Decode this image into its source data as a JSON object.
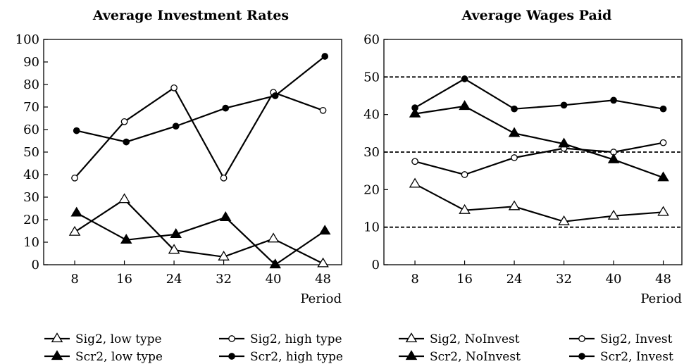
{
  "chart_data": [
    {
      "type": "line",
      "title": "Average Investment Rates",
      "xlabel": "Period",
      "ylabel": "",
      "x": [
        8,
        16,
        24,
        32,
        40,
        48
      ],
      "xticks": [
        "8",
        "16",
        "24",
        "32",
        "40",
        "48"
      ],
      "xlim": [
        3,
        51
      ],
      "ylim": [
        0,
        100
      ],
      "yticks": [
        "0",
        "10",
        "20",
        "30",
        "40",
        "50",
        "60",
        "70",
        "80",
        "90",
        "100"
      ],
      "legend_position": "bottom",
      "grid": false,
      "series": [
        {
          "name": "Sig2, low type",
          "marker": "open-triangle",
          "x": [
            8,
            16,
            24,
            32,
            40,
            48
          ],
          "values": [
            14.5,
            29,
            6.5,
            3.5,
            11.5,
            0.5
          ]
        },
        {
          "name": "Sig2, high type",
          "marker": "open-circle",
          "x": [
            8,
            16,
            24,
            32,
            40,
            48
          ],
          "values": [
            38.5,
            63.5,
            78.5,
            38.5,
            76.5,
            68.5
          ]
        },
        {
          "name": "Scr2, low type",
          "marker": "filled-triangle",
          "x": [
            8.3,
            16.3,
            24.3,
            32.3,
            40.3,
            48.3
          ],
          "values": [
            23,
            11,
            13.5,
            21,
            0,
            15
          ]
        },
        {
          "name": "Scr2, high type",
          "marker": "filled-circle",
          "x": [
            8.3,
            16.3,
            24.3,
            32.3,
            40.3,
            48.3
          ],
          "values": [
            59.5,
            54.5,
            61.5,
            69.5,
            75,
            92.5
          ]
        }
      ]
    },
    {
      "type": "line",
      "title": "Average Wages Paid",
      "xlabel": "Period",
      "ylabel": "",
      "x": [
        8,
        16,
        24,
        32,
        40,
        48
      ],
      "xticks": [
        "8",
        "16",
        "24",
        "32",
        "40",
        "48"
      ],
      "xlim": [
        3,
        51
      ],
      "ylim": [
        0,
        60
      ],
      "yticks": [
        "0",
        "10",
        "20",
        "30",
        "40",
        "50",
        "60"
      ],
      "reference_lines": [
        10,
        30,
        50
      ],
      "legend_position": "bottom",
      "grid": false,
      "series": [
        {
          "name": "Sig2, NoInvest",
          "marker": "open-triangle",
          "x": [
            8,
            16,
            24,
            32,
            40,
            48
          ],
          "values": [
            21.5,
            14.5,
            15.5,
            11.5,
            13,
            14
          ]
        },
        {
          "name": "Sig2, Invest",
          "marker": "open-circle",
          "x": [
            8,
            16,
            24,
            32,
            40,
            48
          ],
          "values": [
            27.5,
            24,
            28.5,
            31,
            30,
            32.5
          ]
        },
        {
          "name": "Scr2, NoInvest",
          "marker": "filled-triangle",
          "x": [
            8,
            16,
            24,
            32,
            40,
            48
          ],
          "values": [
            40.2,
            42.2,
            35,
            32.2,
            28,
            23.2
          ]
        },
        {
          "name": "Scr2, Invest",
          "marker": "filled-circle",
          "x": [
            8,
            16,
            24,
            32,
            40,
            48
          ],
          "values": [
            41.8,
            49.5,
            41.5,
            42.5,
            43.8,
            41.5
          ]
        }
      ]
    }
  ]
}
